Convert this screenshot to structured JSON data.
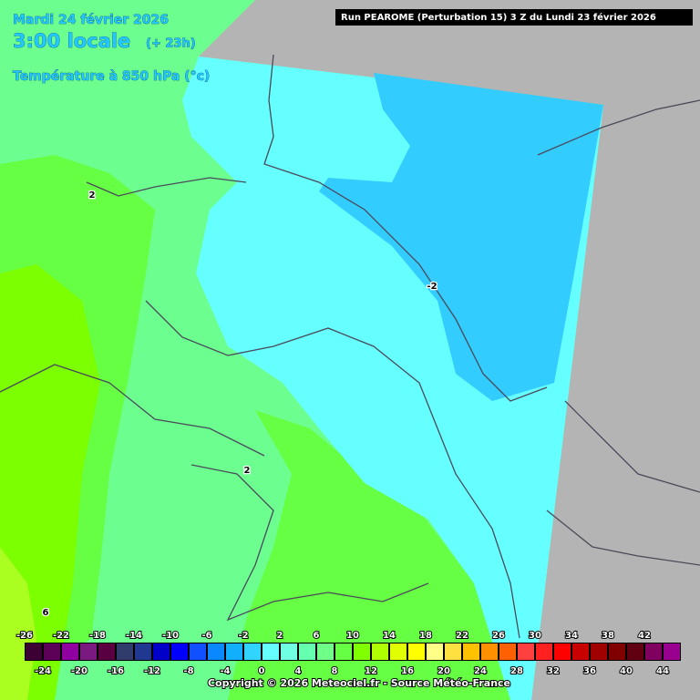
{
  "header": {
    "date": "Mardi 24 février 2026",
    "time": "3:00 locale",
    "lead": "(+ 23h)",
    "field": "Température à 850 hPa (°c)",
    "run": "Run PEAROME (Perturbation 15) 3 Z du Lundi 23 février 2026"
  },
  "contour_labels": [
    "2",
    "-2",
    "2",
    "6"
  ],
  "colorbar": {
    "upper_labels": [
      -26,
      -22,
      -18,
      -14,
      -10,
      -6,
      -2,
      2,
      6,
      10,
      14,
      18,
      22,
      26,
      30,
      34,
      38,
      42
    ],
    "lower_labels": [
      -24,
      -20,
      -16,
      -12,
      -8,
      -4,
      0,
      4,
      8,
      12,
      16,
      20,
      24,
      28,
      32,
      36,
      40,
      44
    ],
    "colors": [
      "#3c0034",
      "#5c0058",
      "#9000a0",
      "#7a1a80",
      "#5a0040",
      "#303c6c",
      "#203890",
      "#0000c8",
      "#0000ff",
      "#1050ff",
      "#0a88ff",
      "#10b0ff",
      "#30d4ff",
      "#66ffff",
      "#70ffe0",
      "#66ffb0",
      "#70ff88",
      "#66ff44",
      "#80ff00",
      "#b0ff00",
      "#e0ff00",
      "#ffff00",
      "#ffff88",
      "#ffe040",
      "#ffc000",
      "#ff9000",
      "#ff6000",
      "#ff4040",
      "#ff2020",
      "#ff0000",
      "#c80000",
      "#a00000",
      "#800000",
      "#600010",
      "#800060",
      "#9a0090",
      "#c000c0",
      "#ff00ff",
      "#ff60ff",
      "#ff90ff"
    ]
  },
  "footer": {
    "copyright": "Copyright © 2026 Meteociel.fr - Source Météo-France"
  }
}
